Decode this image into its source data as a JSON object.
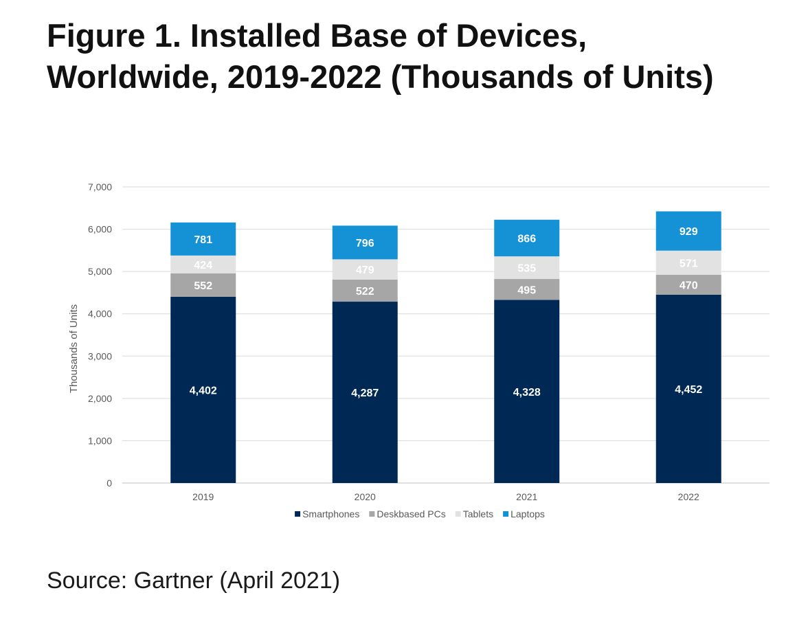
{
  "page": {
    "title": "Figure 1. Installed Base of Devices, Worldwide, 2019-2022 (Thousands of Units)",
    "source": "Source: Gartner (April 2021)"
  },
  "chart_data": {
    "type": "bar",
    "stacked": true,
    "categories": [
      "2019",
      "2020",
      "2021",
      "2022"
    ],
    "series": [
      {
        "name": "Smartphones",
        "values": [
          4402,
          4287,
          4328,
          4452
        ],
        "labels": [
          "4,402",
          "4,287",
          "4,328",
          "4,452"
        ],
        "color": "#002855",
        "label_color": "#ffffff"
      },
      {
        "name": "Deskbased PCs",
        "values": [
          552,
          522,
          495,
          470
        ],
        "labels": [
          "552",
          "522",
          "495",
          "470"
        ],
        "color": "#a6a6a6",
        "label_color": "#ffffff"
      },
      {
        "name": "Tablets",
        "values": [
          424,
          479,
          535,
          571
        ],
        "labels": [
          "424",
          "479",
          "535",
          "571"
        ],
        "color": "#e2e2e2",
        "label_color": "#ffffff"
      },
      {
        "name": "Laptops",
        "values": [
          781,
          796,
          866,
          929
        ],
        "labels": [
          "781",
          "796",
          "866",
          "929"
        ],
        "color": "#1592d6",
        "label_color": "#ffffff"
      }
    ],
    "ylabel": "Thousands of Units",
    "ylim": [
      0,
      7000
    ],
    "yticks": [
      0,
      1000,
      2000,
      3000,
      4000,
      5000,
      6000,
      7000
    ],
    "ytick_labels": [
      "0",
      "1,000",
      "2,000",
      "3,000",
      "4,000",
      "5,000",
      "6,000",
      "7,000"
    ],
    "grid": true,
    "legend": "bottom"
  }
}
